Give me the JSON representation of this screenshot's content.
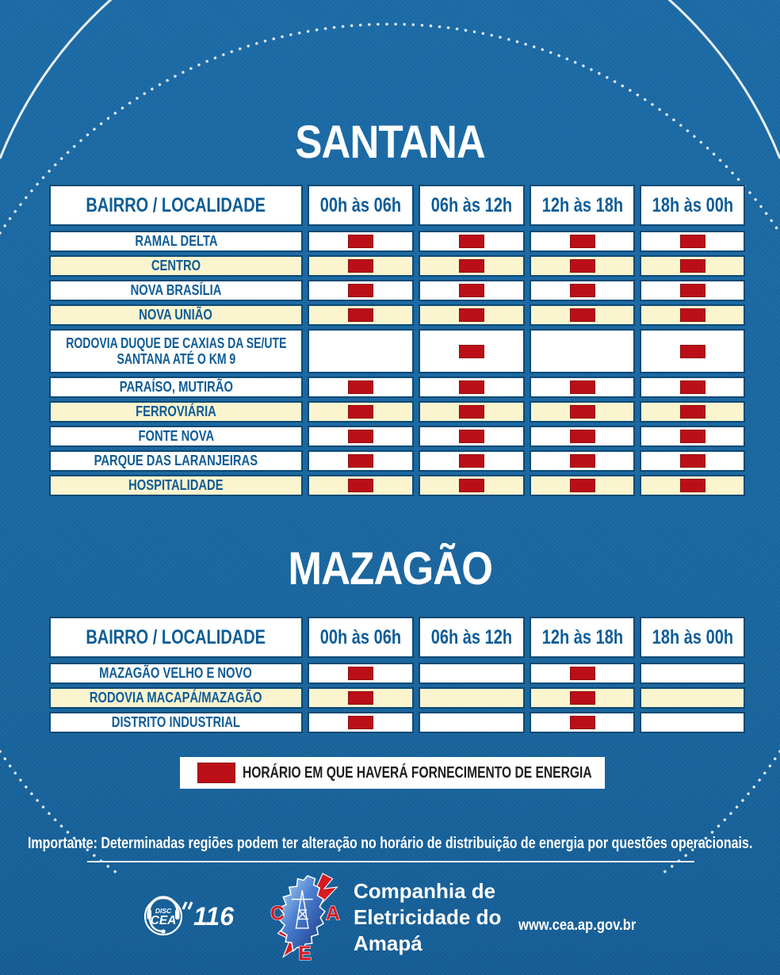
{
  "colors": {
    "background": "#1b6ba7",
    "cell_border": "#0b4a74",
    "cream": "#faf4cf",
    "text_blue": "#0e5c97",
    "mark_red": "#bb0f17",
    "legend_text": "#1d1d1f"
  },
  "tables": [
    {
      "title": "SANTANA",
      "header": [
        "BAIRRO / LOCALIDADE",
        "00h às 06h",
        "06h às 12h",
        "12h às 18h",
        "18h às 00h"
      ],
      "rows": [
        {
          "label": "RAMAL DELTA",
          "shade": "white",
          "marks": [
            true,
            true,
            true,
            true
          ]
        },
        {
          "label": "CENTRO",
          "shade": "cream",
          "marks": [
            true,
            true,
            true,
            true
          ]
        },
        {
          "label": "NOVA BRASÍLIA",
          "shade": "white",
          "marks": [
            true,
            true,
            true,
            true
          ]
        },
        {
          "label": "NOVA UNIÃO",
          "shade": "cream",
          "marks": [
            true,
            true,
            true,
            true
          ]
        },
        {
          "label": "RODOVIA DUQUE DE CAXIAS DA SE/UTE\nSANTANA ATÉ O KM 9",
          "shade": "white",
          "tall": true,
          "marks": [
            false,
            true,
            false,
            true
          ]
        },
        {
          "label": "PARAÍSO, MUTIRÃO",
          "shade": "white",
          "marks": [
            true,
            true,
            true,
            true
          ]
        },
        {
          "label": "FERROVIÁRIA",
          "shade": "cream",
          "marks": [
            true,
            true,
            true,
            true
          ]
        },
        {
          "label": "FONTE NOVA",
          "shade": "white",
          "marks": [
            true,
            true,
            true,
            true
          ]
        },
        {
          "label": "PARQUE DAS LARANJEIRAS",
          "shade": "white",
          "marks": [
            true,
            true,
            true,
            true
          ]
        },
        {
          "label": "HOSPITALIDADE",
          "shade": "cream",
          "marks": [
            true,
            true,
            true,
            true
          ]
        }
      ]
    },
    {
      "title": "MAZAGÃO",
      "header": [
        "BAIRRO / LOCALIDADE",
        "00h às 06h",
        "06h às 12h",
        "12h às 18h",
        "18h às 00h"
      ],
      "rows": [
        {
          "label": "MAZAGÃO VELHO E NOVO",
          "shade": "white",
          "marks": [
            true,
            false,
            true,
            false
          ]
        },
        {
          "label": "RODOVIA MACAPÁ/MAZAGÃO",
          "shade": "cream",
          "marks": [
            true,
            false,
            true,
            false
          ]
        },
        {
          "label": "DISTRITO INDUSTRIAL",
          "shade": "white",
          "marks": [
            true,
            false,
            true,
            false
          ]
        }
      ]
    }
  ],
  "legend": {
    "label": "HORÁRIO EM QUE HAVERÁ FORNECIMENTO DE ENERGIA"
  },
  "note": "Importante: Determinadas regiões podem ter alteração no horário de distribuição de energia por questões operacionais.",
  "footer": {
    "disc_label": "DISC",
    "cea_label": "CEA",
    "phone": "116",
    "company_name": "Companhia de\nEletricidade do\nAmapá",
    "logo_letters": [
      "C",
      "E",
      "A"
    ],
    "website": "www.cea.ap.gov.br"
  }
}
